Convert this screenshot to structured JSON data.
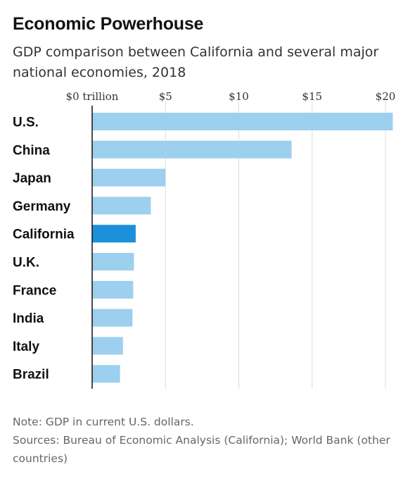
{
  "title": "Economic Powerhouse",
  "subtitle": "GDP comparison between California and several major national economies, 2018",
  "notes": {
    "note": "Note: GDP in current U.S. dollars.",
    "sources": "Sources: Bureau of Economic Analysis (California); World Bank (other countries)"
  },
  "colors": {
    "bar": "#9dcfee",
    "highlight": "#1b8fd9",
    "axis": "#111111",
    "grid": "#dddddd"
  },
  "chart_data": {
    "type": "bar",
    "orientation": "horizontal",
    "categories": [
      "U.S.",
      "China",
      "Japan",
      "Germany",
      "California",
      "U.K.",
      "France",
      "India",
      "Italy",
      "Brazil"
    ],
    "values": [
      20.5,
      13.6,
      5.0,
      4.0,
      2.97,
      2.85,
      2.8,
      2.75,
      2.1,
      1.9
    ],
    "highlight": "California",
    "unit": "trillion",
    "xlim": [
      0,
      21
    ],
    "xticks": [
      0,
      5,
      10,
      15,
      20
    ],
    "xtick_labels": [
      "$0 trillion",
      "$5",
      "$10",
      "$15",
      "$20"
    ],
    "grid": true,
    "xaxis_position": "top"
  }
}
